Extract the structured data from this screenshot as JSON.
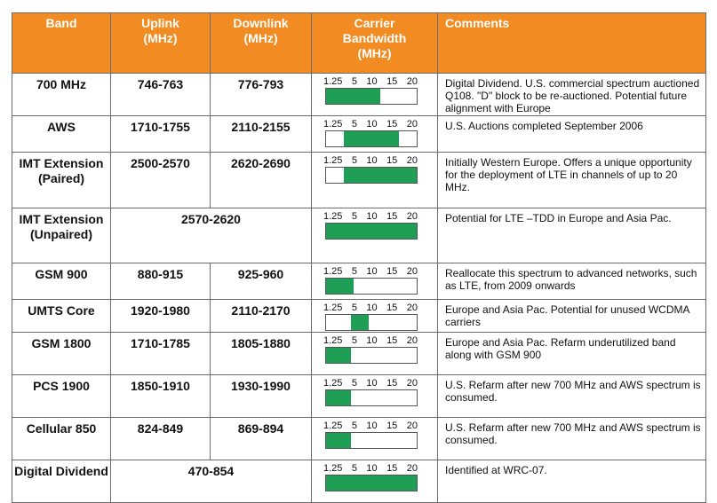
{
  "headers": {
    "band": "Band",
    "uplink": "Uplink",
    "uplink_unit": "(MHz)",
    "downlink": "Downlink",
    "downlink_unit": "(MHz)",
    "bandwidth_l1": "Carrier",
    "bandwidth_l2": "Bandwidth",
    "bandwidth_unit": "(MHz)",
    "comments": "Comments"
  },
  "scale_ticks": [
    "1.25",
    "5",
    "10",
    "15",
    "20"
  ],
  "colors": {
    "header_bg": "#f28c22",
    "bar_fill": "#1f9e55",
    "border": "#6b6b6b"
  },
  "rows": [
    {
      "band": "700 MHz",
      "uplink": "746-763",
      "downlink": "776-793",
      "bandwidth_range": [
        0,
        0.6
      ],
      "comment": "Digital Dividend. U.S. commercial spectrum auctioned Q108. \"D\" block to be re-auctioned. Potential future alignment with Europe"
    },
    {
      "band": "AWS",
      "uplink": "1710-1755",
      "downlink": "2110-2155",
      "bandwidth_range": [
        0.2,
        0.8
      ],
      "comment": "U.S. Auctions completed September 2006"
    },
    {
      "band": "IMT Extension (Paired)",
      "uplink": "2500-2570",
      "downlink": "2620-2690",
      "bandwidth_range": [
        0.2,
        1.0
      ],
      "comment": "Initially Western Europe. Offers a unique opportunity for the deployment of LTE in channels of up to 20 MHz."
    },
    {
      "band": "IMT Extension (Unpaired)",
      "combined": "2570-2620",
      "bandwidth_range": [
        0,
        1.0
      ],
      "comment": "Potential for LTE –TDD in Europe and Asia Pac."
    },
    {
      "band": "GSM 900",
      "uplink": "880-915",
      "downlink": "925-960",
      "bandwidth_range": [
        0,
        0.3
      ],
      "comment": "Reallocate this spectrum to advanced networks, such as LTE, from 2009 onwards"
    },
    {
      "band": "UMTS Core",
      "uplink": "1920-1980",
      "downlink": "2110-2170",
      "bandwidth_range": [
        0.27,
        0.47
      ],
      "comment": "Europe and Asia Pac. Potential for unused WCDMA carriers"
    },
    {
      "band": "GSM 1800",
      "uplink": "1710-1785",
      "downlink": "1805-1880",
      "bandwidth_range": [
        0,
        0.27
      ],
      "comment": "Europe and Asia Pac. Refarm underutilized band along with GSM 900"
    },
    {
      "band": "PCS 1900",
      "uplink": "1850-1910",
      "downlink": "1930-1990",
      "bandwidth_range": [
        0,
        0.27
      ],
      "comment": "U.S. Refarm after new 700 MHz and AWS spectrum is consumed."
    },
    {
      "band": "Cellular 850",
      "uplink": "824-849",
      "downlink": "869-894",
      "bandwidth_range": [
        0,
        0.27
      ],
      "comment": "U.S. Refarm after new 700 MHz and AWS spectrum is consumed."
    },
    {
      "band": "Digital Dividend",
      "combined": "470-854",
      "bandwidth_range": [
        0,
        1.0
      ],
      "comment": "Identified at WRC-07."
    }
  ]
}
